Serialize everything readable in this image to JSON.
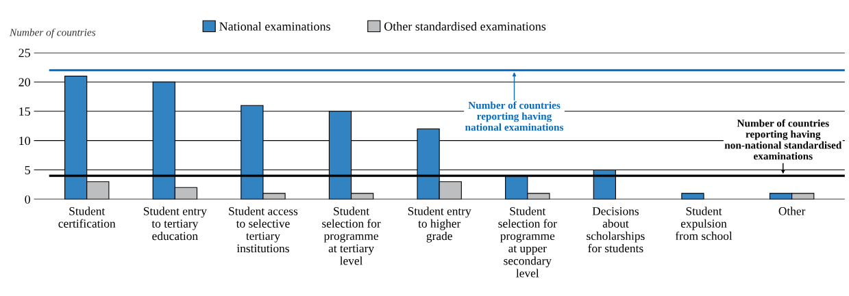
{
  "chart_data": {
    "type": "bar",
    "ylabel": "Number of countries",
    "categories": [
      "Student\ncertification",
      "Student entry\nto tertiary\neducation",
      "Student access\nto selective\ntertiary\ninstitutions",
      "Student\nselection for\nprogramme\nat tertiary\nlevel",
      "Student entry\nto higher\ngrade",
      "Student\nselection for\nprogramme\nat upper\nsecondary\nlevel",
      "Decisions\nabout\nscholarships\nfor students",
      "Student\nexpulsion\nfrom school",
      "Other"
    ],
    "series": [
      {
        "name": "National examinations",
        "color": "#3283c2",
        "values": [
          21,
          20,
          16,
          15,
          12,
          4,
          5,
          1,
          1
        ]
      },
      {
        "name": "Other standardised examinations",
        "color": "#bcbec0",
        "values": [
          3,
          2,
          1,
          1,
          3,
          1,
          null,
          null,
          1
        ]
      }
    ],
    "ref_lines": [
      {
        "axis": "y",
        "value": 22,
        "label": "Number of countries\nreporting having\nnational examinations",
        "color": "#0a6bbd"
      },
      {
        "axis": "y",
        "value": 4,
        "label": "Number of countries\nreporting having\nnon-national standardised\nexaminations",
        "color": "#000000"
      }
    ],
    "ylim": [
      0,
      25
    ],
    "yticks": [
      0,
      5,
      10,
      15,
      20,
      25
    ],
    "grid": "y",
    "legend": "top"
  }
}
